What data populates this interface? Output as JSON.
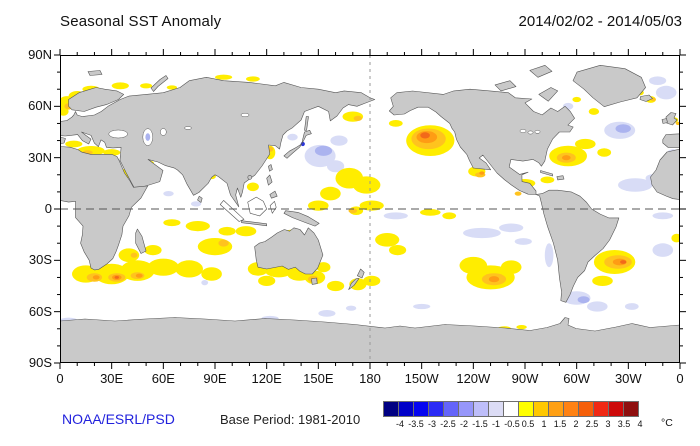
{
  "header": {
    "title": "Seasonal SST Anomaly",
    "date_range": "2014/02/02 - 2014/05/03"
  },
  "axes": {
    "lat_labels": [
      "90N",
      "60N",
      "30N",
      "0",
      "30S",
      "60S",
      "90S"
    ],
    "lon_labels": [
      "0",
      "30E",
      "60E",
      "90E",
      "120E",
      "150E",
      "180",
      "150W",
      "120W",
      "90W",
      "60W",
      "30W",
      "0"
    ]
  },
  "footer": {
    "credit": "NOAA/ESRL/PSD",
    "credit_color": "#2222DD",
    "base_period": "Base Period: 1981-2010"
  },
  "colorbar": {
    "labels": [
      "-4",
      "-3.5",
      "-3",
      "-2.5",
      "-2",
      "-1.5",
      "-1",
      "-0.5",
      "0.5",
      "1",
      "1.5",
      "2",
      "2.5",
      "3",
      "3.5",
      "4"
    ],
    "unit": "°C",
    "colors": [
      "#000082",
      "#0000C8",
      "#0505F0",
      "#2A2AF5",
      "#6464FA",
      "#9696FA",
      "#BEBEFA",
      "#DCDCF5",
      "#FFFFFF",
      "#FFFF00",
      "#FFC800",
      "#FFA014",
      "#FF8214",
      "#F55F0A",
      "#F02814",
      "#CD0A0A",
      "#8F0F0F"
    ]
  },
  "chart_data": {
    "type": "heatmap",
    "title": "Seasonal SST Anomaly",
    "period": "2014/02/02 - 2014/05/03",
    "base_period": "1981-2010",
    "units": "°C",
    "projection": "equirectangular, Pacific-centered (lon 0E..360E left-to-right, 180 at center), lat 90N..90S",
    "grid_lines": [
      "equator (0 lat, dashed)",
      "dateline (180 lon, dashed)"
    ],
    "scale_breaks": [
      -4,
      -3.5,
      -3,
      -2.5,
      -2,
      -1.5,
      -1,
      -0.5,
      0.5,
      1,
      1.5,
      2,
      2.5,
      3,
      3.5,
      4
    ],
    "level_colors": {
      "y": "#FFED00",
      "o1": "#FFC31E",
      "o2": "#FF9C14",
      "o3": "#F2691A",
      "b1": "#D8DCF6",
      "b2": "#ABB3EF",
      "bd": "#2B35D9"
    },
    "level_values": {
      "y": 0.75,
      "o1": 1.5,
      "o2": 2.25,
      "o3": 3,
      "b1": -0.75,
      "b2": -1.5,
      "bd": -3
    },
    "anomaly_regions": [
      {
        "region": "Gulf of Alaska / NE Pacific",
        "approx_location": "42N 145W",
        "peak_anomaly_c": 3
      },
      {
        "region": "Western North Atlantic (Gulf Stream)",
        "approx_location": "31N 65W",
        "peak_anomaly_c": 2.5
      },
      {
        "region": "Norwegian Sea & North Sea",
        "approx_location": "62N 5E",
        "peak_anomaly_c": 1.5
      },
      {
        "region": "Mediterranean Sea",
        "approx_location": "34N 18E",
        "peak_anomaly_c": 1.5
      },
      {
        "region": "South Indian Ocean band",
        "approx_location": "35S-45S, 10E-100E",
        "peak_anomaly_c": 3
      },
      {
        "region": "Tasman Sea / SE Australia",
        "approx_location": "41S 147E",
        "peak_anomaly_c": 2.5
      },
      {
        "region": "Southeast Pacific",
        "approx_location": "40S 110W",
        "peak_anomaly_c": 2.5
      },
      {
        "region": "Southwest Atlantic off Argentina/Uruguay",
        "approx_location": "31S 33W",
        "peak_anomaly_c": 3
      },
      {
        "region": "Mexico west coast / Baja",
        "approx_location": "20N 116W",
        "peak_anomaly_c": 2
      },
      {
        "region": "Western tropical Pacific",
        "approx_location": "5N-20N, 140E-180",
        "peak_anomaly_c": 1
      },
      {
        "region": "Northwest Pacific east of Japan",
        "approx_location": "32N 155E",
        "peak_anomaly_c": -1.5
      },
      {
        "region": "Central North Atlantic",
        "approx_location": "46N 35W",
        "peak_anomaly_c": -1.5
      },
      {
        "region": "Subtropical NE Atlantic off NW Africa",
        "approx_location": "30N 5W",
        "peak_anomaly_c": -1.5
      },
      {
        "region": "Tropical North Atlantic",
        "approx_location": "14N 30W",
        "peak_anomaly_c": -1
      },
      {
        "region": "Equatorial / SE tropical Pacific",
        "approx_location": "14S 115W",
        "peak_anomaly_c": -1
      }
    ],
    "blobs": [
      [
        151,
        31,
        9,
        6.5,
        "b1"
      ],
      [
        153,
        34,
        5,
        3,
        "b2"
      ],
      [
        160,
        25,
        5,
        3.5,
        "b1"
      ],
      [
        162,
        40,
        5,
        3,
        "b1"
      ],
      [
        141,
        38,
        1.2,
        1.2,
        "bd"
      ],
      [
        135,
        42,
        3,
        2,
        "b1"
      ],
      [
        325,
        46,
        9,
        5,
        "b1"
      ],
      [
        327,
        47,
        4.5,
        2.5,
        "b2"
      ],
      [
        356,
        29,
        5,
        6,
        "b1"
      ],
      [
        357,
        31,
        3,
        3,
        "b2"
      ],
      [
        1,
        27,
        2,
        3,
        "b1"
      ],
      [
        334,
        14,
        10,
        4,
        "b1"
      ],
      [
        345,
        18,
        5,
        2.5,
        "b1"
      ],
      [
        350,
        -4,
        6,
        2,
        "b1"
      ],
      [
        350,
        -24,
        6,
        4,
        "b1"
      ],
      [
        195,
        -4,
        7,
        2,
        "b1"
      ],
      [
        245,
        -14,
        11,
        3,
        "b1"
      ],
      [
        262,
        -11,
        7,
        2.5,
        "b1"
      ],
      [
        269,
        -19,
        5,
        2,
        "b1"
      ],
      [
        284,
        -27,
        2.5,
        7,
        "b1"
      ],
      [
        300,
        -52,
        8,
        4,
        "b1"
      ],
      [
        312,
        -57,
        6,
        3,
        "b1"
      ],
      [
        304,
        -53,
        3.5,
        2,
        "b2"
      ],
      [
        332,
        -57,
        4,
        2,
        "b1"
      ],
      [
        5,
        -65,
        5,
        1.5,
        "b1"
      ],
      [
        122,
        -64,
        5,
        1.5,
        "b1"
      ],
      [
        155,
        -61,
        5,
        2,
        "b1"
      ],
      [
        169,
        -58,
        3,
        1.5,
        "b1"
      ],
      [
        210,
        -57,
        5,
        1.5,
        "b1"
      ],
      [
        84,
        -43,
        2,
        1.5,
        "b1"
      ],
      [
        63,
        9,
        3,
        1.5,
        "b1"
      ],
      [
        79,
        3,
        3,
        1.5,
        "b1"
      ],
      [
        295,
        60,
        3,
        2,
        "b1"
      ],
      [
        352,
        68,
        6,
        4,
        "b1"
      ],
      [
        347,
        75,
        5,
        2.5,
        "b1"
      ],
      [
        4,
        62,
        5,
        4,
        "y"
      ],
      [
        10,
        66,
        5,
        3,
        "y"
      ],
      [
        2,
        57,
        3,
        2.5,
        "y"
      ],
      [
        18,
        70,
        5,
        2,
        "y"
      ],
      [
        35,
        72,
        5,
        2,
        "y"
      ],
      [
        50,
        72,
        3.5,
        1.5,
        "y"
      ],
      [
        65,
        71,
        3,
        1.2,
        "y"
      ],
      [
        95,
        77,
        5,
        1.5,
        "y"
      ],
      [
        112,
        76,
        4,
        1.5,
        "y"
      ],
      [
        8,
        38,
        5,
        2,
        "y"
      ],
      [
        18,
        34,
        8,
        2.8,
        "y"
      ],
      [
        30,
        33,
        5,
        2,
        "y"
      ],
      [
        34,
        42,
        4,
        1.8,
        "y"
      ],
      [
        38,
        20,
        2,
        4,
        "y"
      ],
      [
        52,
        27,
        2.5,
        1.2,
        "y"
      ],
      [
        88,
        19,
        2.5,
        1.5,
        "y"
      ],
      [
        122,
        33,
        3,
        4,
        "y"
      ],
      [
        170,
        54,
        6,
        3,
        "y"
      ],
      [
        195,
        50,
        4,
        2,
        "y"
      ],
      [
        168,
        18,
        8,
        6,
        "y"
      ],
      [
        178,
        14,
        8,
        5,
        "y"
      ],
      [
        157,
        9,
        6,
        4,
        "y"
      ],
      [
        150,
        2,
        6,
        3,
        "y"
      ],
      [
        172,
        -1,
        4,
        2.5,
        "y"
      ],
      [
        181,
        2,
        7,
        3,
        "y"
      ],
      [
        215,
        -2,
        6,
        2,
        "y"
      ],
      [
        226,
        -4,
        4,
        2,
        "y"
      ],
      [
        112,
        13,
        3.5,
        2.5,
        "y"
      ],
      [
        215,
        40,
        14,
        9,
        "y"
      ],
      [
        242,
        22,
        5,
        3,
        "y"
      ],
      [
        295,
        31,
        11,
        6,
        "y"
      ],
      [
        305,
        38,
        6,
        3,
        "y"
      ],
      [
        316,
        33,
        4,
        2.5,
        "y"
      ],
      [
        270,
        15,
        6,
        2.5,
        "y"
      ],
      [
        283,
        17,
        4,
        2,
        "y"
      ],
      [
        300,
        64,
        2.5,
        1.5,
        "y"
      ],
      [
        312,
        68,
        2.5,
        1.2,
        "y"
      ],
      [
        330,
        70,
        3,
        1.5,
        "y"
      ],
      [
        310,
        57,
        3,
        2,
        "y"
      ],
      [
        337,
        68,
        2,
        1.5,
        "y"
      ],
      [
        343,
        64,
        3,
        2,
        "y"
      ],
      [
        357,
        52,
        2,
        1.5,
        "y"
      ],
      [
        65,
        -8,
        5,
        2,
        "y"
      ],
      [
        80,
        -10,
        7,
        3,
        "y"
      ],
      [
        90,
        -22,
        10,
        5,
        "y"
      ],
      [
        97,
        -13,
        5,
        2.5,
        "y"
      ],
      [
        108,
        -13,
        6,
        3,
        "y"
      ],
      [
        135,
        -15,
        6,
        3,
        "y"
      ],
      [
        15,
        -38,
        8,
        5,
        "y"
      ],
      [
        30,
        -38,
        10,
        6,
        "y"
      ],
      [
        45,
        -36,
        10,
        6,
        "y"
      ],
      [
        60,
        -34,
        9,
        5,
        "y"
      ],
      [
        75,
        -35,
        8,
        5,
        "y"
      ],
      [
        88,
        -38,
        6,
        4,
        "y"
      ],
      [
        40,
        -27,
        6,
        4,
        "y"
      ],
      [
        54,
        -24,
        5,
        3,
        "y"
      ],
      [
        115,
        -35,
        6,
        4,
        "y"
      ],
      [
        120,
        -42,
        5,
        3,
        "y"
      ],
      [
        127,
        -36,
        8,
        4,
        "y"
      ],
      [
        139,
        -38,
        7,
        4,
        "y"
      ],
      [
        148,
        -40,
        6,
        4,
        "y"
      ],
      [
        153,
        -34,
        4,
        3,
        "y"
      ],
      [
        160,
        -45,
        5,
        3,
        "y"
      ],
      [
        173,
        -44,
        5,
        3.5,
        "y"
      ],
      [
        181,
        -42,
        5,
        3,
        "y"
      ],
      [
        190,
        -18,
        7,
        4,
        "y"
      ],
      [
        196,
        -24,
        5,
        3,
        "y"
      ],
      [
        250,
        -40,
        14,
        7,
        "y"
      ],
      [
        240,
        -33,
        8,
        5,
        "y"
      ],
      [
        262,
        -34,
        6,
        4,
        "y"
      ],
      [
        322,
        -31,
        12,
        7,
        "y"
      ],
      [
        315,
        -42,
        6,
        3,
        "y"
      ],
      [
        358,
        -17,
        3,
        2.5,
        "y"
      ],
      [
        258,
        -70,
        4,
        1.5,
        "y"
      ],
      [
        268,
        -69,
        3,
        1.2,
        "y"
      ],
      [
        5,
        60,
        2.5,
        1.8,
        "o1"
      ],
      [
        11,
        65,
        2,
        1.5,
        "o1"
      ],
      [
        16,
        33,
        3,
        1.3,
        "o1"
      ],
      [
        122,
        35,
        1.8,
        1.5,
        "o1"
      ],
      [
        173,
        53,
        2.5,
        1.5,
        "o1"
      ],
      [
        214,
        41,
        10,
        6,
        "o1"
      ],
      [
        244,
        20,
        3,
        1.5,
        "o1"
      ],
      [
        294,
        30,
        5.5,
        3,
        "o1"
      ],
      [
        266,
        9,
        2,
        1.2,
        "o1"
      ],
      [
        344.5,
        64,
        1.5,
        1,
        "o1"
      ],
      [
        359,
        50,
        1.5,
        1,
        "o1"
      ],
      [
        20,
        -40,
        4.5,
        2.5,
        "o1"
      ],
      [
        33,
        -40,
        5,
        2.5,
        "o1"
      ],
      [
        45,
        -39,
        4,
        2,
        "o1"
      ],
      [
        43,
        -27,
        2,
        1.5,
        "o1"
      ],
      [
        95,
        -20,
        3,
        2,
        "o1"
      ],
      [
        138,
        -16,
        3,
        1.5,
        "o1"
      ],
      [
        147,
        -41,
        3,
        2,
        "o1"
      ],
      [
        252,
        -41,
        7,
        3.5,
        "o1"
      ],
      [
        324,
        -31,
        8,
        4,
        "o1"
      ],
      [
        170,
        -1,
        2.5,
        1.5,
        "o1"
      ],
      [
        213,
        42,
        6,
        3.5,
        "o2"
      ],
      [
        33,
        -40,
        2.8,
        1.5,
        "o2"
      ],
      [
        21,
        -40,
        2,
        1.2,
        "o2"
      ],
      [
        46,
        -39,
        2,
        1.2,
        "o2"
      ],
      [
        294,
        30,
        2.5,
        1.5,
        "o2"
      ],
      [
        325,
        -31,
        4,
        2,
        "o2"
      ],
      [
        252,
        -41,
        3,
        1.8,
        "o2"
      ],
      [
        148,
        -41.5,
        1.6,
        1.1,
        "o2"
      ],
      [
        245,
        21,
        1.5,
        1,
        "o2"
      ],
      [
        212,
        43,
        2.8,
        1.8,
        "o3"
      ],
      [
        327,
        -31,
        1.8,
        1.1,
        "o3"
      ],
      [
        33,
        -40,
        1.3,
        0.8,
        "o3"
      ]
    ],
    "lake_blobs": [
      [
        51,
        42,
        1.4,
        2.2,
        "b2"
      ]
    ]
  }
}
